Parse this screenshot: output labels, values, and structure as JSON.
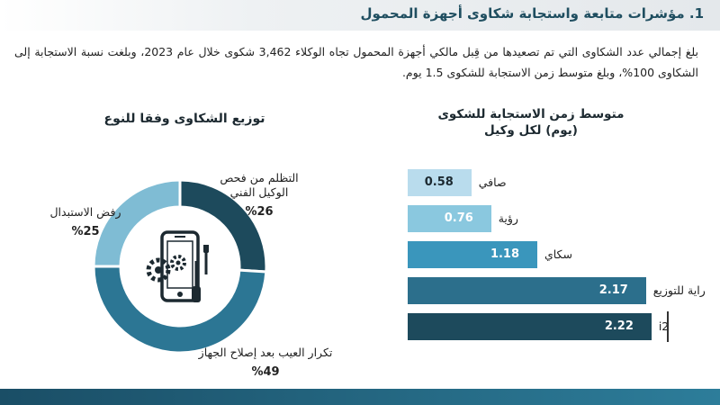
{
  "header": {
    "title": "1. مؤشرات متابعة واستجابة شكاوى أجهزة المحمول"
  },
  "intro": {
    "text": "بلغ إجمالي عدد الشكاوى التي تم تصعيدها من قِبل مالكي أجهزة المحمول تجاه الوكلاء 3,462 شكوى خلال عام 2023، وبلغت نسبة الاستجابة إلى الشكاوى 100%، وبلغ متوسط زمن الاستجابة للشكوى 1.5 يوم."
  },
  "chart_data": [
    {
      "type": "pie",
      "title": "توزيع الشكاوى وفقا للنوع",
      "slices": [
        {
          "label": "التظلم من فحص الوكيل الفني",
          "pct_text": "%26",
          "value": 26,
          "color": "#1d4a5c"
        },
        {
          "label": "تكرار العيب بعد إصلاح الجهاز",
          "pct_text": "%49",
          "value": 49,
          "color": "#2c7694"
        },
        {
          "label": "رفض الاستبدال",
          "pct_text": "%25",
          "value": 25,
          "color": "#7fbcd4"
        }
      ],
      "legend": "none"
    },
    {
      "type": "bar",
      "orientation": "horizontal",
      "title_line1": "متوسط زمن الاستجابة للشكوى",
      "title_line2": "(يوم) لكل وكيل",
      "categories": [
        "صافي",
        "رؤية",
        "سكاي",
        "راية للتوزيع",
        "i2"
      ],
      "values": [
        0.58,
        0.76,
        1.18,
        2.17,
        2.22
      ],
      "value_labels": [
        "0.58",
        "0.76",
        "1.18",
        "2.17",
        "2.22"
      ],
      "colors": [
        "#b9dced",
        "#8ac8df",
        "#3a96bc",
        "#2c6f8c",
        "#1d4a5c"
      ],
      "value_text_colors": [
        "#1c2930",
        "#ffffff",
        "#ffffff",
        "#ffffff",
        "#ffffff"
      ]
    }
  ]
}
